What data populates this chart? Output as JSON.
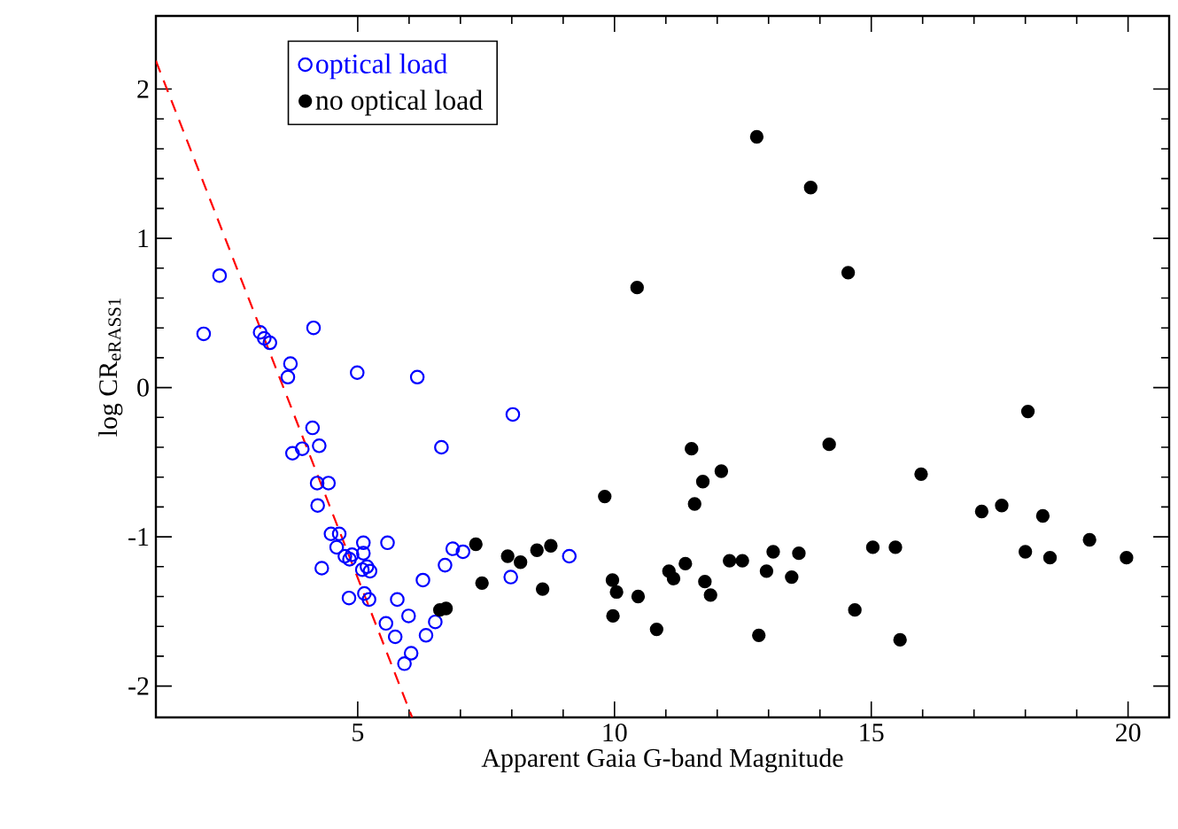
{
  "chart_data": {
    "type": "scatter",
    "xlabel": "Apparent Gaia G-band Magnitude",
    "ylabel": "log CR$_{eRASS1}$",
    "xlim": [
      1.07,
      20.8
    ],
    "ylim": [
      -2.21,
      2.49
    ],
    "xticks": [
      5,
      10,
      15,
      20
    ],
    "yticks": [
      -2,
      -1,
      0,
      1,
      2
    ],
    "legend": "top left",
    "grid": false,
    "series": [
      {
        "type": "line",
        "color": "#ff0000",
        "line_style": "dashed",
        "marker": "none",
        "x": [
          1.07,
          6.06
        ],
        "values": [
          2.19,
          -2.21
        ]
      },
      {
        "name": "optical load",
        "color": "#0000ff",
        "marker": "circle",
        "x": [
          2.31,
          2.0,
          3.1,
          3.18,
          3.29,
          4.14,
          3.69,
          3.64,
          4.99,
          4.12,
          3.92,
          3.73,
          4.25,
          4.21,
          4.43,
          6.16,
          6.63,
          8.02,
          4.22,
          4.48,
          4.64,
          4.59,
          4.75,
          4.84,
          4.89,
          5.11,
          5.11,
          5.18,
          5.24,
          5.09,
          4.3,
          5.58,
          4.83,
          5.13,
          5.22,
          5.77,
          5.55,
          5.73,
          5.99,
          6.04,
          5.91,
          6.27,
          6.33,
          6.51,
          6.7,
          6.85,
          7.05,
          7.98,
          9.12
        ],
        "values": [
          0.75,
          0.36,
          0.37,
          0.33,
          0.3,
          0.4,
          0.16,
          0.07,
          0.1,
          -0.27,
          -0.41,
          -0.44,
          -0.39,
          -0.64,
          -0.64,
          0.07,
          -0.4,
          -0.18,
          -0.79,
          -0.98,
          -0.98,
          -1.07,
          -1.13,
          -1.15,
          -1.12,
          -1.04,
          -1.11,
          -1.2,
          -1.23,
          -1.22,
          -1.21,
          -1.04,
          -1.41,
          -1.38,
          -1.42,
          -1.42,
          -1.58,
          -1.67,
          -1.53,
          -1.78,
          -1.85,
          -1.29,
          -1.66,
          -1.57,
          -1.19,
          -1.08,
          -1.1,
          -1.27,
          -1.13
        ]
      },
      {
        "name": "no optical load",
        "color": "#000000",
        "marker": "circle",
        "x": [
          7.3,
          7.42,
          6.6,
          6.72,
          7.92,
          8.17,
          8.49,
          8.76,
          8.6,
          10.44,
          11.5,
          11.72,
          12.08,
          11.56,
          9.81,
          14.18,
          9.96,
          10.04,
          9.97,
          10.46,
          10.82,
          11.06,
          11.15,
          11.38,
          11.76,
          11.87,
          12.24,
          12.49,
          12.96,
          13.09,
          13.45,
          13.59,
          12.81,
          12.77,
          13.82,
          14.55,
          15.97,
          18.05,
          17.15,
          17.54,
          18.34,
          18.0,
          18.48,
          19.25,
          19.97,
          14.68,
          15.03,
          15.47,
          15.56
        ],
        "values": [
          -1.05,
          -1.31,
          -1.49,
          -1.48,
          -1.13,
          -1.17,
          -1.09,
          -1.06,
          -1.35,
          0.67,
          -0.41,
          -0.63,
          -0.56,
          -0.78,
          -0.73,
          -0.38,
          -1.29,
          -1.37,
          -1.53,
          -1.4,
          -1.62,
          -1.23,
          -1.28,
          -1.18,
          -1.3,
          -1.39,
          -1.16,
          -1.16,
          -1.23,
          -1.1,
          -1.27,
          -1.11,
          -1.66,
          1.68,
          1.34,
          0.77,
          -0.58,
          -0.16,
          -0.83,
          -0.79,
          -0.86,
          -1.1,
          -1.14,
          -1.02,
          -1.14,
          -1.49,
          -1.07,
          -1.07,
          -1.69
        ]
      }
    ]
  }
}
